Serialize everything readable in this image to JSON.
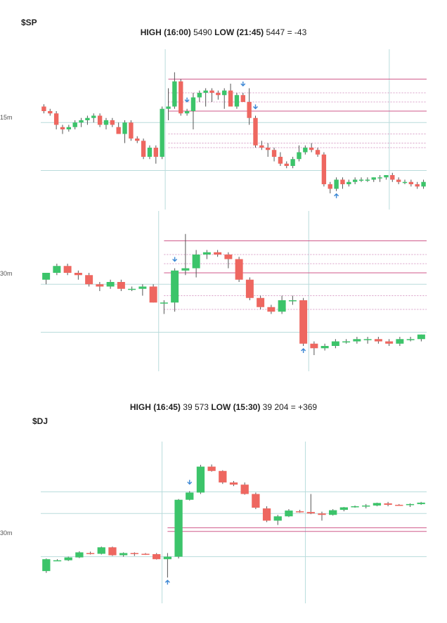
{
  "colors": {
    "up": "#3cc46a",
    "down": "#ee6760",
    "arrow": "#3a86d4",
    "level_solid": "#d05a8a",
    "level_dotted": "#d9a0c8",
    "grid": "#b9dcdc"
  },
  "sp": {
    "symbol": "$SP",
    "title": {
      "high_label": "HIGH (16:00)",
      "high_value": "5490",
      "low_label": "LOW (21:45)",
      "low_value": "5447",
      "diff": "= -43"
    }
  },
  "dj": {
    "symbol": "$DJ",
    "title": {
      "high_label": "HIGH (16:45)",
      "high_value": "39 573",
      "low_label": "LOW (15:30)",
      "low_value": "39 204",
      "diff": "= +369"
    }
  },
  "chart_data": [
    {
      "type": "candlestick",
      "symbol": "$SP",
      "timeframe": "15m",
      "ylim": [
        5436,
        5500
      ],
      "levels": {
        "solid": [
          5490,
          5476
        ],
        "dotted": [
          5484,
          5480,
          5466,
          5462,
          5460
        ],
        "grid": [
          5471,
          5450
        ]
      },
      "sessions": [
        20,
        56
      ],
      "arrows": [
        {
          "i": 23,
          "dir": "down"
        },
        {
          "i": 32,
          "dir": "down"
        },
        {
          "i": 34,
          "dir": "down"
        },
        {
          "i": 47,
          "dir": "up"
        }
      ],
      "candles": [
        [
          5478,
          5479,
          5475,
          5476
        ],
        [
          5476,
          5477,
          5474,
          5475
        ],
        [
          5475,
          5476,
          5468,
          5470
        ],
        [
          5469,
          5470,
          5466,
          5468
        ],
        [
          5468,
          5470,
          5467,
          5469
        ],
        [
          5469,
          5472,
          5468,
          5471
        ],
        [
          5471,
          5473,
          5469,
          5472
        ],
        [
          5472,
          5474,
          5470,
          5473
        ],
        [
          5473,
          5475,
          5471,
          5474
        ],
        [
          5474,
          5475,
          5469,
          5470
        ],
        [
          5470,
          5473,
          5468,
          5472
        ],
        [
          5472,
          5473,
          5469,
          5470
        ],
        [
          5469,
          5471,
          5466,
          5466
        ],
        [
          5466,
          5472,
          5462,
          5471
        ],
        [
          5471,
          5472,
          5463,
          5464
        ],
        [
          5464,
          5465,
          5462,
          5463
        ],
        [
          5463,
          5464,
          5455,
          5456
        ],
        [
          5456,
          5461,
          5455,
          5460
        ],
        [
          5460,
          5461,
          5453,
          5456
        ],
        [
          5456,
          5478,
          5455,
          5477
        ],
        [
          5477,
          5486,
          5472,
          5478
        ],
        [
          5478,
          5493,
          5477,
          5489
        ],
        [
          5489,
          5490,
          5474,
          5475
        ],
        [
          5475,
          5477,
          5474,
          5476
        ],
        [
          5476,
          5484,
          5468,
          5482
        ],
        [
          5482,
          5485,
          5480,
          5484
        ],
        [
          5484,
          5486,
          5478,
          5485
        ],
        [
          5485,
          5486,
          5480,
          5484
        ],
        [
          5484,
          5485,
          5481,
          5483
        ],
        [
          5483,
          5486,
          5477,
          5485
        ],
        [
          5485,
          5488,
          5478,
          5478
        ],
        [
          5478,
          5484,
          5477,
          5483
        ],
        [
          5483,
          5484,
          5480,
          5480
        ],
        [
          5480,
          5486,
          5470,
          5473
        ],
        [
          5473,
          5474,
          5460,
          5461
        ],
        [
          5461,
          5463,
          5459,
          5460
        ],
        [
          5460,
          5462,
          5456,
          5459
        ],
        [
          5459,
          5460,
          5454,
          5456
        ],
        [
          5456,
          5458,
          5452,
          5453
        ],
        [
          5453,
          5454,
          5451,
          5452
        ],
        [
          5452,
          5456,
          5451,
          5455
        ],
        [
          5455,
          5461,
          5454,
          5458
        ],
        [
          5458,
          5461,
          5457,
          5460
        ],
        [
          5460,
          5462,
          5458,
          5459
        ],
        [
          5459,
          5460,
          5456,
          5457
        ],
        [
          5457,
          5458,
          5443,
          5444
        ],
        [
          5444,
          5445,
          5440,
          5442
        ],
        [
          5442,
          5447,
          5441,
          5446
        ],
        [
          5446,
          5447,
          5442,
          5444
        ],
        [
          5444,
          5446,
          5443,
          5445
        ],
        [
          5445,
          5447,
          5444,
          5446
        ],
        [
          5446,
          5447,
          5445,
          5446
        ],
        [
          5446,
          5447,
          5445,
          5446
        ],
        [
          5446,
          5447,
          5445,
          5447
        ],
        [
          5447,
          5448,
          5445,
          5447
        ],
        [
          5447,
          5448,
          5446,
          5448
        ],
        [
          5448,
          5449,
          5445,
          5446
        ],
        [
          5446,
          5447,
          5444,
          5445
        ],
        [
          5445,
          5446,
          5444,
          5445
        ],
        [
          5445,
          5446,
          5443,
          5444
        ],
        [
          5444,
          5445,
          5442,
          5443
        ],
        [
          5443,
          5446,
          5442,
          5445
        ]
      ]
    },
    {
      "type": "candlestick",
      "symbol": "$SP",
      "timeframe": "30m",
      "ylim": [
        5436,
        5500
      ],
      "levels": {
        "solid": [
          5490,
          5476
        ],
        "dotted": [
          5484,
          5480,
          5466,
          5460
        ],
        "grid": [
          5471,
          5450
        ]
      },
      "sessions": [
        11,
        25
      ],
      "arrows": [
        {
          "i": 12,
          "dir": "down"
        },
        {
          "i": 24,
          "dir": "up"
        }
      ],
      "candles": [
        [
          5473,
          5476,
          5471,
          5476
        ],
        [
          5476,
          5480,
          5475,
          5479
        ],
        [
          5479,
          5480,
          5475,
          5476
        ],
        [
          5476,
          5477,
          5473,
          5475
        ],
        [
          5475,
          5476,
          5470,
          5471
        ],
        [
          5471,
          5472,
          5468,
          5470
        ],
        [
          5470,
          5473,
          5469,
          5472
        ],
        [
          5472,
          5473,
          5468,
          5469
        ],
        [
          5469,
          5470,
          5468,
          5469
        ],
        [
          5469,
          5471,
          5466,
          5470
        ],
        [
          5470,
          5471,
          5463,
          5463
        ],
        [
          5463,
          5464,
          5458,
          5463
        ],
        [
          5463,
          5478,
          5459,
          5477
        ],
        [
          5477,
          5493,
          5475,
          5478
        ],
        [
          5478,
          5486,
          5474,
          5484
        ],
        [
          5484,
          5486,
          5482,
          5485
        ],
        [
          5485,
          5486,
          5483,
          5484
        ],
        [
          5484,
          5485,
          5478,
          5482
        ],
        [
          5482,
          5483,
          5472,
          5473
        ],
        [
          5473,
          5474,
          5464,
          5465
        ],
        [
          5465,
          5466,
          5460,
          5461
        ],
        [
          5461,
          5462,
          5458,
          5459
        ],
        [
          5459,
          5466,
          5458,
          5464
        ],
        [
          5464,
          5466,
          5462,
          5464
        ],
        [
          5464,
          5465,
          5444,
          5445
        ],
        [
          5445,
          5446,
          5440,
          5443
        ],
        [
          5443,
          5445,
          5442,
          5444
        ],
        [
          5444,
          5447,
          5443,
          5446
        ],
        [
          5446,
          5447,
          5445,
          5446
        ],
        [
          5446,
          5448,
          5445,
          5447
        ],
        [
          5447,
          5448,
          5445,
          5447
        ],
        [
          5447,
          5448,
          5445,
          5446
        ],
        [
          5446,
          5447,
          5444,
          5445
        ],
        [
          5445,
          5448,
          5444,
          5447
        ],
        [
          5447,
          5448,
          5446,
          5447
        ],
        [
          5447,
          5449,
          5446,
          5449
        ]
      ]
    },
    {
      "type": "candlestick",
      "symbol": "$DJ",
      "timeframe": "30m",
      "ylim": [
        39190,
        39600
      ],
      "levels": {
        "solid": [
          39380,
          39370
        ],
        "dotted": [],
        "grid": [
          39480,
          39420,
          39300
        ]
      },
      "sessions": [
        11,
        24
      ],
      "arrows": [
        {
          "i": 13,
          "dir": "down"
        },
        {
          "i": 11,
          "dir": "up"
        }
      ],
      "candles": [
        [
          39260,
          39295,
          39255,
          39293
        ],
        [
          39290,
          39293,
          39288,
          39290
        ],
        [
          39290,
          39300,
          39288,
          39298
        ],
        [
          39298,
          39315,
          39296,
          39312
        ],
        [
          39310,
          39314,
          39306,
          39308
        ],
        [
          39308,
          39328,
          39306,
          39326
        ],
        [
          39326,
          39328,
          39302,
          39304
        ],
        [
          39304,
          39312,
          39300,
          39310
        ],
        [
          39310,
          39312,
          39302,
          39308
        ],
        [
          39308,
          39310,
          39305,
          39307
        ],
        [
          39307,
          39310,
          39292,
          39293
        ],
        [
          39293,
          39310,
          39242,
          39300
        ],
        [
          39300,
          39460,
          39295,
          39458
        ],
        [
          39458,
          39482,
          39456,
          39478
        ],
        [
          39478,
          39555,
          39474,
          39550
        ],
        [
          39550,
          39556,
          39536,
          39538
        ],
        [
          39538,
          39540,
          39502,
          39506
        ],
        [
          39506,
          39510,
          39496,
          39500
        ],
        [
          39500,
          39506,
          39472,
          39474
        ],
        [
          39474,
          39478,
          39432,
          39436
        ],
        [
          39434,
          39440,
          39396,
          39400
        ],
        [
          39400,
          39416,
          39388,
          39412
        ],
        [
          39412,
          39432,
          39410,
          39428
        ],
        [
          39426,
          39430,
          39422,
          39424
        ],
        [
          39424,
          39474,
          39418,
          39420
        ],
        [
          39420,
          39425,
          39400,
          39416
        ],
        [
          39416,
          39432,
          39414,
          39429
        ],
        [
          39430,
          39438,
          39426,
          39437
        ],
        [
          39438,
          39442,
          39436,
          39440
        ],
        [
          39440,
          39446,
          39434,
          39442
        ],
        [
          39442,
          39450,
          39440,
          39449
        ],
        [
          39448,
          39452,
          39440,
          39444
        ],
        [
          39444,
          39446,
          39442,
          39443
        ],
        [
          39443,
          39448,
          39438,
          39446
        ],
        [
          39446,
          39452,
          39444,
          39450
        ]
      ]
    }
  ]
}
